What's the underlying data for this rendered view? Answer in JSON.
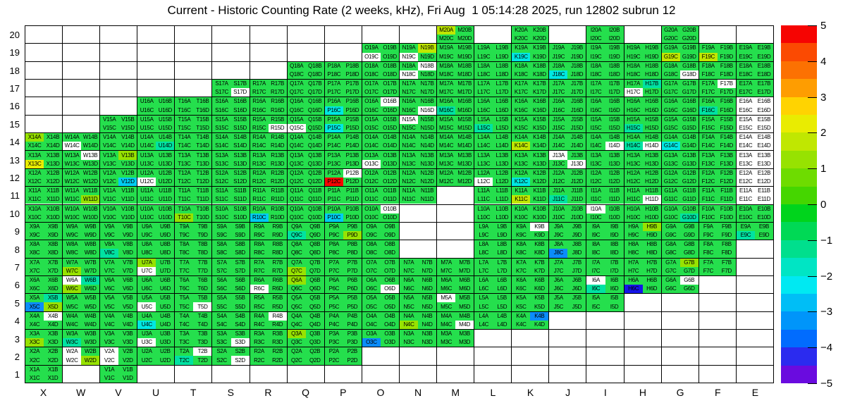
{
  "title": "Current - Historic Counting Rate (2 weeks, kHz), Fri Aug  1 05:14:28 2025, run 12802 subrun 12",
  "chart_data": {
    "type": "heatmap",
    "title": "Current - Historic Counting Rate (2 weeks, kHz), Fri Aug  1 05:14:28 2025, run 12802 subrun 12",
    "x_categories": [
      "X",
      "W",
      "V",
      "U",
      "T",
      "S",
      "R",
      "Q",
      "P",
      "O",
      "N",
      "M",
      "L",
      "K",
      "J",
      "I",
      "H",
      "G",
      "F",
      "E"
    ],
    "y_categories": [
      20,
      19,
      18,
      17,
      16,
      15,
      14,
      13,
      12,
      11,
      10,
      9,
      8,
      7,
      6,
      5,
      4,
      3,
      2,
      1
    ],
    "channel_suffixes": [
      "A",
      "B",
      "C",
      "D"
    ],
    "zlim": [
      -5,
      5
    ],
    "colorbar_ticks": [
      5,
      4,
      3,
      2,
      1,
      0,
      -1,
      -2,
      -3,
      -4,
      -5
    ],
    "palette": [
      "#F60402",
      "#FB4A02",
      "#FC7102",
      "#FE9D01",
      "#FFD301",
      "#E9EC01",
      "#C0E701",
      "#97E201",
      "#6EDC00",
      "#45D600",
      "#00D41C",
      "#00D955",
      "#00DF8D",
      "#00E5C4",
      "#00E9F2",
      "#00BEF6",
      "#0095FA",
      "#016CFE",
      "#2B2BEF",
      "#6A0BDF"
    ],
    "default_cell_color": "#25DF4D",
    "default_value_approx": 0,
    "grid_on": true,
    "legend_position": "right-colorbar",
    "rows_present_by_column": {
      "X": [
        14,
        13,
        12,
        11,
        10,
        9,
        8,
        7,
        6,
        5,
        4,
        3,
        2,
        1
      ],
      "W": [
        14,
        13,
        12,
        11,
        10,
        9,
        8,
        7,
        6,
        5,
        4,
        3,
        2
      ],
      "V": [
        15,
        14,
        13,
        12,
        11,
        10,
        9,
        8,
        7,
        6,
        5,
        4,
        3,
        2,
        1
      ],
      "U": [
        16,
        15,
        14,
        13,
        12,
        11,
        10,
        9,
        8,
        7,
        6,
        5,
        4,
        3,
        2
      ],
      "T": [
        16,
        15,
        14,
        13,
        12,
        11,
        10,
        9,
        8,
        7,
        6,
        5,
        4,
        3,
        2
      ],
      "S": [
        17,
        16,
        15,
        14,
        13,
        12,
        11,
        10,
        9,
        8,
        7,
        6,
        5,
        4,
        3,
        2
      ],
      "R": [
        17,
        16,
        15,
        14,
        13,
        12,
        11,
        10,
        9,
        8,
        7,
        6,
        5,
        4,
        3,
        2
      ],
      "Q": [
        18,
        17,
        16,
        15,
        14,
        13,
        12,
        11,
        10,
        9,
        8,
        7,
        6,
        5,
        4,
        3,
        2
      ],
      "P": [
        18,
        17,
        16,
        15,
        14,
        13,
        12,
        11,
        10,
        9,
        8,
        7,
        6,
        5,
        4,
        3,
        2
      ],
      "O": [
        19,
        18,
        17,
        16,
        15,
        14,
        13,
        12,
        11,
        10,
        9,
        8,
        7,
        6,
        5,
        4,
        3
      ],
      "N": [
        19,
        18,
        17,
        16,
        15,
        14,
        13,
        12,
        11,
        7,
        6,
        5,
        4,
        3
      ],
      "M": [
        20,
        19,
        18,
        17,
        16,
        15,
        14,
        13,
        12,
        7,
        6,
        5,
        4,
        3
      ],
      "L": [
        19,
        18,
        17,
        16,
        15,
        14,
        13,
        12,
        11,
        10,
        9,
        8,
        7,
        6,
        5,
        4
      ],
      "K": [
        20,
        19,
        18,
        17,
        16,
        15,
        14,
        13,
        12,
        11,
        10,
        9,
        8,
        7,
        6,
        5,
        4
      ],
      "J": [
        19,
        18,
        17,
        16,
        15,
        14,
        13,
        12,
        11,
        10,
        9,
        8,
        7,
        6,
        5
      ],
      "I": [
        20,
        19,
        18,
        17,
        16,
        15,
        14,
        13,
        12,
        11,
        10,
        9,
        8,
        7,
        6,
        5
      ],
      "H": [
        19,
        18,
        17,
        16,
        15,
        14,
        13,
        12,
        11,
        10,
        9,
        8,
        7,
        6
      ],
      "G": [
        20,
        19,
        18,
        17,
        16,
        15,
        14,
        13,
        12,
        11,
        10,
        9,
        8,
        7,
        6
      ],
      "F": [
        19,
        18,
        17,
        16,
        15,
        14,
        13,
        12,
        11,
        10,
        9,
        8,
        7
      ],
      "E": [
        19,
        18,
        17,
        16,
        15,
        14,
        13,
        12,
        11,
        10,
        9
      ]
    },
    "no_data_cells": [
      "E16",
      "E15",
      "E14",
      "E13",
      "E12",
      "E11"
    ],
    "no_data_channels": [
      "O19C",
      "N19C",
      "N18B",
      "N18C",
      "G18D",
      "S17D",
      "H17C",
      "F17B",
      "O16B",
      "N16D",
      "R15D",
      "Q15C",
      "N15A",
      "W14C",
      "I14D",
      "H14D",
      "O13C",
      "J13A",
      "J13D",
      "W13B",
      "P12B",
      "U12C",
      "L12C",
      "H11D",
      "O10B",
      "I10A",
      "K9B",
      "U7C",
      "R6C",
      "O6D",
      "W6A",
      "I6A",
      "G6B",
      "M5A",
      "U5C",
      "T5D",
      "X4B",
      "R4B",
      "M4D",
      "U3C",
      "S3D",
      "W2A",
      "W2C",
      "V2A",
      "V2C",
      "T2B",
      "S2D"
    ],
    "value_classes": [
      {
        "name": "red",
        "hex": "#F60402",
        "approx_value": 5,
        "channels": [
          "P12C"
        ]
      },
      {
        "name": "yellow",
        "hex": "#E9EC01",
        "approx_value": 2.5,
        "channels": [
          "X13C"
        ]
      },
      {
        "name": "yellow-green",
        "hex": "#C0E701",
        "approx_value": 2,
        "channels": [
          "M20A",
          "N19B",
          "G19C",
          "F19C",
          "K14C",
          "K11C"
        ]
      },
      {
        "name": "chartreuse",
        "hex": "#97E201",
        "approx_value": 1.5,
        "channels": [
          "X14A",
          "X5D",
          "X3C",
          "W11D",
          "W7C",
          "W6C",
          "W2D",
          "V13B",
          "U7A",
          "T10C",
          "Q7C",
          "Q6A",
          "Q3A",
          "P9D",
          "N4C",
          "H9B",
          "G7B"
        ]
      },
      {
        "name": "green-teal",
        "hex": "#00E2A2",
        "approx_value": -0.7,
        "channels": [
          "X5B",
          "W6B",
          "W3C",
          "V8C",
          "U14D",
          "T2C",
          "Q9C",
          "M16C",
          "L15C",
          "J11C",
          "I6C",
          "H17B",
          "H15C",
          "H14C",
          "G10D",
          "F16C",
          "E9C"
        ]
      },
      {
        "name": "cyan",
        "hex": "#00E8E2",
        "approx_value": -1.3,
        "channels": [
          "P16C",
          "P15C",
          "K19C",
          "K12C",
          "J18C",
          "G14C",
          "U4C"
        ]
      },
      {
        "name": "cyan-blue",
        "hex": "#00CDF2",
        "approx_value": -1.8,
        "channels": [
          "V12D",
          "R10C",
          "P10C"
        ]
      },
      {
        "name": "azure",
        "hex": "#0B8CFA",
        "approx_value": -2.8,
        "channels": [
          "X5C",
          "O3C",
          "K4B",
          "J8C"
        ]
      },
      {
        "name": "blue",
        "hex": "#1515E8",
        "approx_value": -3.8,
        "channels": [
          "H6C"
        ]
      }
    ]
  }
}
